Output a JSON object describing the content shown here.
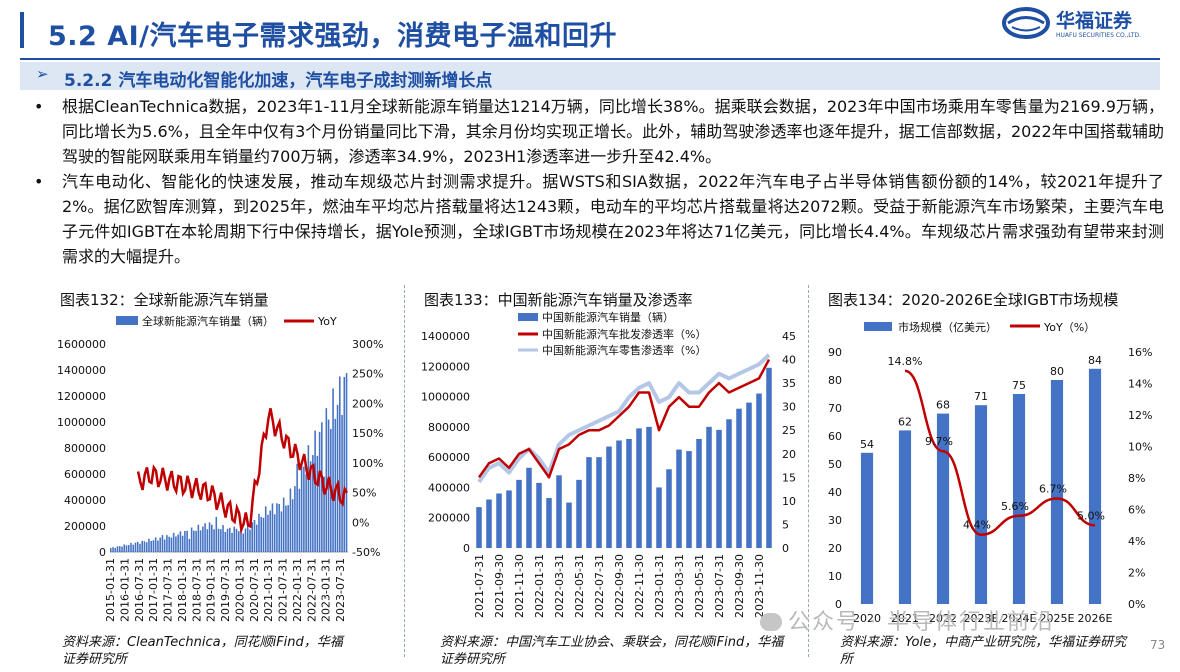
{
  "header": {
    "title": "5.2 AI/汽车电子需求强劲，消费电子温和回升",
    "logo_name": "华福证券",
    "logo_sub": "HUAFU SECURITIES CO.,LTD.",
    "brand_color": "#1f4fa3"
  },
  "section": {
    "arrow": "➢",
    "title": "5.2.2 汽车电动化智能化加速，汽车电子成封测新增长点"
  },
  "bullets": [
    "根据CleanTechnica数据，2023年1-11月全球新能源车销量达1214万辆，同比增长38%。据乘联会数据，2023年中国市场乘用车零售量为2169.9万辆，同比增长为5.6%，且全年中仅有3个月份销量同比下滑，其余月份均实现正增长。此外，辅助驾驶渗透率也逐年提升，据工信部数据，2022年中国搭载辅助驾驶的智能网联乘用车销量约700万辆，渗透率34.9%，2023H1渗透率进一步升至42.4%。",
    "汽车电动化、智能化的快速发展，推动车规级芯片封测需求提升。据WSTS和SIA数据，2022年汽车电子占半导体销售额份额的14%，较2021年提升了2%。据亿欧智库测算，到2025年，燃油车平均芯片搭载量将达1243颗，电动车的平均芯片搭载量将达2072颗。受益于新能源汽车市场繁荣，主要汽车电子元件如IGBT在本轮周期下行中保持增长，据Yole预测，全球IGBT市场规模在2023年将达71亿美元，同比增长4.4%。车规级芯片需求强劲有望带来封测需求的大幅提升。"
  ],
  "bullet_symbol": "•",
  "figures": [
    {
      "title": "图表132：全球新能源汽车销量",
      "source": "资料来源：CleanTechnica，同花顺iFind，华福证券研究所"
    },
    {
      "title": "图表133：中国新能源汽车销量及渗透率",
      "source": "资料来源：中国汽车工业协会、乘联会，同花顺iFind，华福证券研究所"
    },
    {
      "title": "图表134：2020-2026E全球IGBT市场规模",
      "source": "资料来源：Yole，中商产业研究院，华福证券研究所"
    }
  ],
  "watermark": "公众号 · 半导体行业前沿",
  "page_number": "73",
  "chart_data": [
    {
      "type": "bar",
      "title": "图表132：全球新能源汽车销量",
      "legend": [
        "全球新能源汽车销量（辆）",
        "YoY"
      ],
      "legend_position": "top",
      "bar_color": "#4472c4",
      "line_color": "#c00000",
      "ylim_left": [
        0,
        1600000
      ],
      "ylim_right": [
        -50,
        300
      ],
      "y_ticks_left": [
        "1600000",
        "1400000",
        "1200000",
        "1000000",
        "800000",
        "600000",
        "400000",
        "200000",
        "0"
      ],
      "y_ticks_right": [
        "300%",
        "250%",
        "200%",
        "150%",
        "100%",
        "50%",
        "0%",
        "-50%"
      ],
      "x_ticks": [
        "2015-01-31",
        "2016-01-31",
        "2016-07-31",
        "2017-01-31",
        "2017-07-31",
        "2018-01-31",
        "2018-07-31",
        "2019-01-31",
        "2019-07-31",
        "2020-01-31",
        "2020-07-31",
        "2021-01-31",
        "2021-07-31",
        "2022-01-31",
        "2022-07-31",
        "2023-01-31",
        "2023-07-31"
      ],
      "series_anchor": {
        "sales_monthly_approx": [
          30000,
          60000,
          90000,
          120000,
          160000,
          210000,
          170000,
          190000,
          320000,
          380000,
          700000,
          1000000,
          1300000
        ],
        "yoy_pct_approx": [
          40,
          60,
          80,
          70,
          60,
          50,
          20,
          -5,
          180,
          130,
          90,
          60,
          40
        ]
      }
    },
    {
      "type": "bar",
      "title": "图表133：中国新能源汽车销量及渗透率",
      "legend": [
        "中国新能源汽车销量（辆）",
        "中国新能源汽车批发渗透率（%）",
        "中国新能源汽车零售渗透率（%）"
      ],
      "legend_position": "top",
      "bar_color": "#4472c4",
      "wholesale_color": "#c00000",
      "retail_color": "#b4c7e7",
      "ylim_left": [
        0,
        1400000
      ],
      "ylim_right": [
        0,
        45
      ],
      "y_ticks_left": [
        "1400000",
        "1200000",
        "1000000",
        "800000",
        "600000",
        "400000",
        "200000",
        "0"
      ],
      "y_ticks_right": [
        "45",
        "40",
        "35",
        "30",
        "25",
        "20",
        "15",
        "10",
        "5",
        "0"
      ],
      "x_ticks": [
        "2021-07-31",
        "2021-09-30",
        "2021-11-30",
        "2022-01-31",
        "2022-03-31",
        "2022-05-31",
        "2022-07-31",
        "2022-09-30",
        "2022-11-30",
        "2023-01-31",
        "2023-03-31",
        "2023-05-31",
        "2023-07-31",
        "2023-09-30",
        "2023-11-30"
      ],
      "months": [
        "2021-07",
        "2021-08",
        "2021-09",
        "2021-10",
        "2021-11",
        "2021-12",
        "2022-01",
        "2022-02",
        "2022-03",
        "2022-04",
        "2022-05",
        "2022-06",
        "2022-07",
        "2022-08",
        "2022-09",
        "2022-10",
        "2022-11",
        "2022-12",
        "2023-01",
        "2023-02",
        "2023-03",
        "2023-04",
        "2023-05",
        "2023-06",
        "2023-07",
        "2023-08",
        "2023-09",
        "2023-10",
        "2023-11",
        "2023-12"
      ],
      "sales": [
        270000,
        320000,
        360000,
        380000,
        450000,
        530000,
        430000,
        330000,
        480000,
        300000,
        450000,
        600000,
        600000,
        670000,
        710000,
        720000,
        790000,
        800000,
        400000,
        520000,
        650000,
        640000,
        720000,
        800000,
        780000,
        850000,
        920000,
        960000,
        1020000,
        1190000
      ],
      "wholesale_pct": [
        15,
        18,
        19,
        17,
        20,
        21,
        18,
        15,
        21,
        22,
        24,
        25,
        25,
        26,
        28,
        30,
        33,
        33,
        25,
        30,
        32,
        30,
        30,
        33,
        35,
        33,
        34,
        35,
        36,
        40
      ],
      "retail_pct": [
        14,
        17,
        18,
        16,
        19,
        21,
        19,
        16,
        22,
        24,
        25,
        26,
        27,
        28,
        29,
        32,
        34,
        35,
        31,
        32,
        35,
        33,
        33,
        35,
        37,
        36,
        37,
        38,
        39,
        41
      ]
    },
    {
      "type": "bar",
      "title": "图表134：2020-2026E全球IGBT市场规模",
      "legend": [
        "市场规模（亿美元）",
        "YoY（%）"
      ],
      "legend_position": "top",
      "bar_color": "#4472c4",
      "line_color": "#c00000",
      "ylim_left": [
        0,
        90
      ],
      "ylim_right": [
        0,
        16
      ],
      "y_ticks_left": [
        "90",
        "80",
        "70",
        "60",
        "50",
        "40",
        "30",
        "20",
        "10",
        "0"
      ],
      "y_ticks_right": [
        "16%",
        "14%",
        "12%",
        "10%",
        "8%",
        "6%",
        "4%",
        "2%",
        "0%"
      ],
      "categories": [
        "2020",
        "2021",
        "2022",
        "2023E",
        "2024E",
        "2025E",
        "2026E"
      ],
      "values": [
        54,
        62,
        68,
        71,
        75,
        80,
        84
      ],
      "value_labels": [
        "54",
        "62",
        "68",
        "71",
        "75",
        "80",
        "84"
      ],
      "yoy": [
        null,
        14.8,
        9.7,
        4.4,
        5.6,
        6.7,
        5.0
      ],
      "yoy_labels": [
        "",
        "14.8%",
        "9.7%",
        "4.4%",
        "5.6%",
        "6.7%",
        "5.0%"
      ]
    }
  ]
}
